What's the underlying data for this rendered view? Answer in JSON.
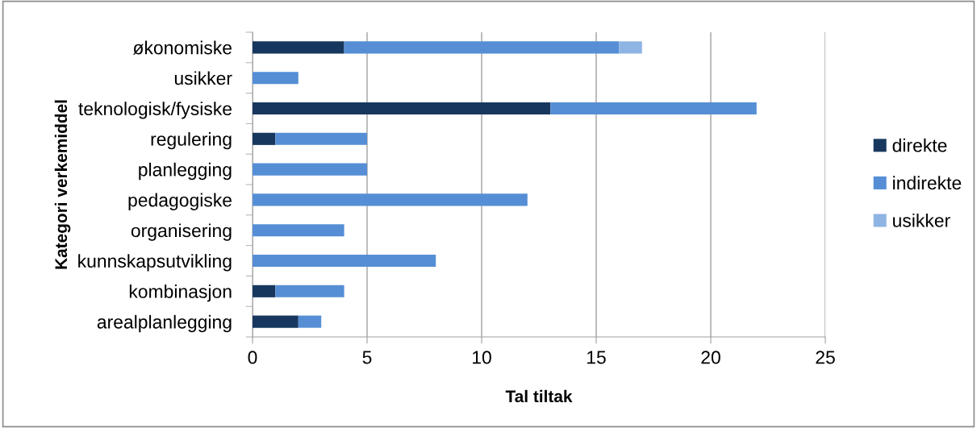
{
  "chart_data": {
    "type": "bar",
    "orientation": "horizontal",
    "stacked": true,
    "xlabel": "Tal tiltak",
    "ylabel": "Kategori verkemiddel",
    "categories": [
      "økonomiske",
      "usikker",
      "teknologisk/fysiske",
      "regulering",
      "planlegging",
      "pedagogiske",
      "organisering",
      "kunnskapsutvikling",
      "kombinasjon",
      "arealplanlegging"
    ],
    "series": [
      {
        "name": "direkte",
        "color": "#17375e",
        "values": [
          4,
          null,
          13,
          1,
          null,
          null,
          null,
          null,
          1,
          2
        ]
      },
      {
        "name": "indirekte",
        "color": "#558ed5",
        "values": [
          12,
          2,
          9,
          4,
          5,
          12,
          4,
          8,
          3,
          1
        ]
      },
      {
        "name": "usikker",
        "color": "#8eb4e3",
        "values": [
          1,
          null,
          null,
          null,
          null,
          null,
          null,
          null,
          null,
          null
        ]
      }
    ],
    "xlim": [
      0,
      25
    ],
    "xticks": [
      0,
      5,
      10,
      15,
      20,
      25
    ],
    "grid": "x",
    "legend": "right"
  }
}
